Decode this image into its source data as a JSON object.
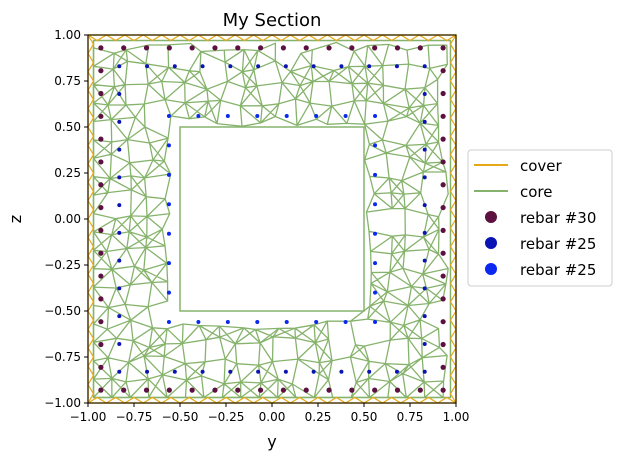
{
  "chart_data": {
    "type": "scatter",
    "title": "My Section",
    "xlabel": "y",
    "ylabel": "z",
    "xlim": [
      -1.0,
      1.0
    ],
    "ylim": [
      -1.0,
      1.0
    ],
    "xticks": [
      "−1.00",
      "−0.75",
      "−0.50",
      "−0.25",
      "0.00",
      "0.25",
      "0.50",
      "0.75",
      "1.00"
    ],
    "yticks": [
      "−1.00",
      "−0.75",
      "−0.50",
      "−0.25",
      "0.00",
      "0.25",
      "0.50",
      "0.75",
      "1.00"
    ],
    "xtick_values": [
      -1.0,
      -0.75,
      -0.5,
      -0.25,
      0.0,
      0.25,
      0.5,
      0.75,
      1.0
    ],
    "ytick_values": [
      -1.0,
      -0.75,
      -0.5,
      -0.25,
      0.0,
      0.25,
      0.5,
      0.75,
      1.0
    ],
    "grid": false,
    "legend_placement": "center-right outside",
    "legend": [
      {
        "label": "cover",
        "kind": "line",
        "color": "#e6a817"
      },
      {
        "label": "core",
        "kind": "line",
        "color": "#86b36c"
      },
      {
        "label": "rebar #30",
        "kind": "dot",
        "color": "#5c1140"
      },
      {
        "label": "rebar #25",
        "kind": "dot",
        "color": "#0a13b3"
      },
      {
        "label": "rebar #25",
        "kind": "dot",
        "color": "#0a28f0"
      }
    ],
    "section": {
      "outer_half_width": 0.97,
      "cover_outer": 1.0,
      "hole_half_width": 0.5
    },
    "series": [
      {
        "name": "rebar #30",
        "color": "#5c1140",
        "outer_ring": {
          "min": -0.93,
          "max": 0.93,
          "count_per_side": 16
        }
      },
      {
        "name": "rebar #25",
        "color": "#0a13b3",
        "ring": {
          "min": -0.83,
          "max": 0.83,
          "count_per_side": 12
        }
      },
      {
        "name": "rebar #25",
        "color": "#0a28f0",
        "inner_ring": {
          "min": -0.56,
          "max": 0.56,
          "count_per_side": 8
        }
      }
    ]
  }
}
